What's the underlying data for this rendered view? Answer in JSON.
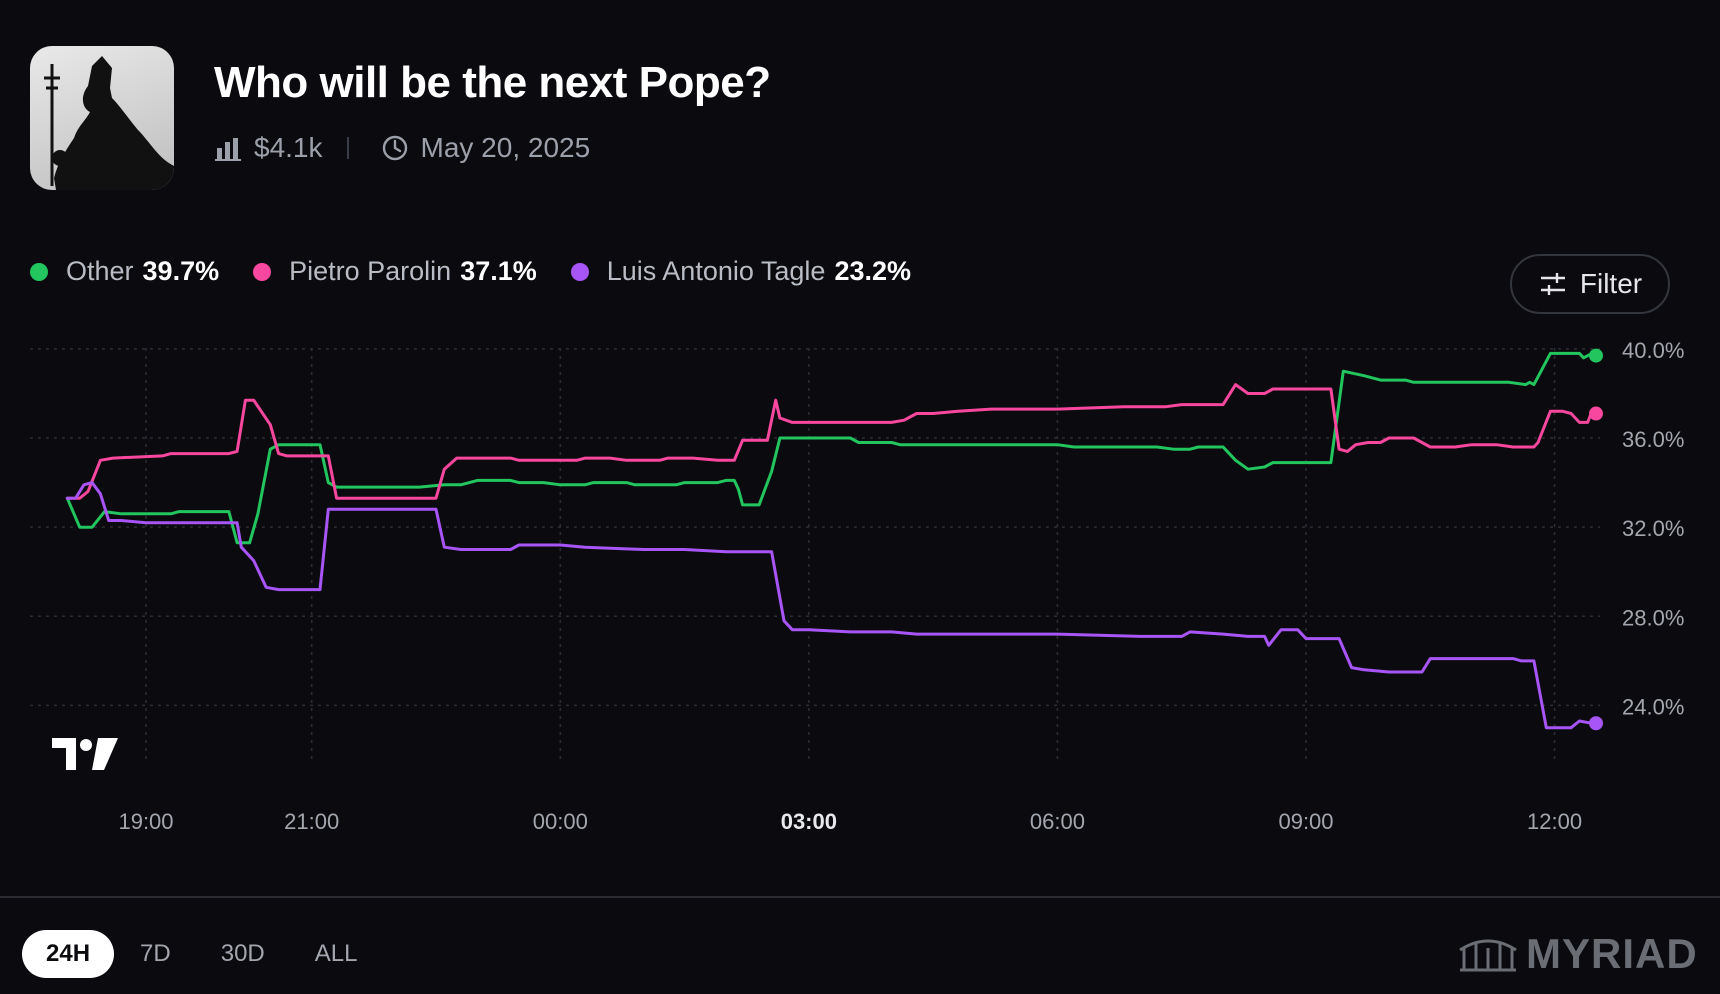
{
  "market": {
    "title": "Who will be the next Pope?",
    "volume": "$4.1k",
    "end_date": "May 20, 2025",
    "image_icon": "pope-silhouette-icon"
  },
  "legend": [
    {
      "name": "Other",
      "value": "39.7%",
      "color": "#22c55e"
    },
    {
      "name": "Pietro Parolin",
      "value": "37.1%",
      "color": "#f7479e"
    },
    {
      "name": "Luis Antonio Tagle",
      "value": "23.2%",
      "color": "#a855f7"
    }
  ],
  "filter_label": "Filter",
  "range_tabs": [
    {
      "label": "24H",
      "active": true
    },
    {
      "label": "7D",
      "active": false
    },
    {
      "label": "30D",
      "active": false
    },
    {
      "label": "ALL",
      "active": false
    }
  ],
  "brand": "MYRIAD",
  "chart_data": {
    "type": "line",
    "title": "",
    "xlabel": "",
    "ylabel": "",
    "ylim": [
      22.0,
      40.4
    ],
    "x_range_hours": [
      17.6,
      36.5
    ],
    "x_ticks": [
      {
        "h": 19,
        "label": "19:00",
        "bold": false
      },
      {
        "h": 21,
        "label": "21:00",
        "bold": false
      },
      {
        "h": 24,
        "label": "00:00",
        "bold": false
      },
      {
        "h": 27,
        "label": "03:00",
        "bold": true
      },
      {
        "h": 30,
        "label": "06:00",
        "bold": false
      },
      {
        "h": 33,
        "label": "09:00",
        "bold": false
      },
      {
        "h": 36,
        "label": "12:00",
        "bold": false
      }
    ],
    "y_ticks": [
      {
        "v": 24,
        "label": "24.0%"
      },
      {
        "v": 28,
        "label": "28.0%"
      },
      {
        "v": 32,
        "label": "32.0%"
      },
      {
        "v": 36,
        "label": "36.0%"
      },
      {
        "v": 40,
        "label": "40.0%"
      }
    ],
    "grid": true,
    "series": [
      {
        "name": "Other",
        "color": "#22c55e",
        "points": [
          [
            18.05,
            33.3
          ],
          [
            18.2,
            32.0
          ],
          [
            18.35,
            32.0
          ],
          [
            18.5,
            32.7
          ],
          [
            18.7,
            32.6
          ],
          [
            19.3,
            32.6
          ],
          [
            19.4,
            32.7
          ],
          [
            20.0,
            32.7
          ],
          [
            20.1,
            31.3
          ],
          [
            20.25,
            31.3
          ],
          [
            20.35,
            32.6
          ],
          [
            20.5,
            35.5
          ],
          [
            20.6,
            35.7
          ],
          [
            20.95,
            35.7
          ],
          [
            21.1,
            35.7
          ],
          [
            21.2,
            34.0
          ],
          [
            21.3,
            33.8
          ],
          [
            22.3,
            33.8
          ],
          [
            22.6,
            33.9
          ],
          [
            22.8,
            33.9
          ],
          [
            23.0,
            34.1
          ],
          [
            23.4,
            34.1
          ],
          [
            23.5,
            34.0
          ],
          [
            23.8,
            34.0
          ],
          [
            24.0,
            33.9
          ],
          [
            24.3,
            33.9
          ],
          [
            24.4,
            34.0
          ],
          [
            24.8,
            34.0
          ],
          [
            24.9,
            33.9
          ],
          [
            25.4,
            33.9
          ],
          [
            25.5,
            34.0
          ],
          [
            25.9,
            34.0
          ],
          [
            26.0,
            34.1
          ],
          [
            26.1,
            34.1
          ],
          [
            26.15,
            33.7
          ],
          [
            26.2,
            33.0
          ],
          [
            26.4,
            33.0
          ],
          [
            26.55,
            34.5
          ],
          [
            26.65,
            36.0
          ],
          [
            27.3,
            36.0
          ],
          [
            27.5,
            36.0
          ],
          [
            27.6,
            35.8
          ],
          [
            28.0,
            35.8
          ],
          [
            28.1,
            35.7
          ],
          [
            28.7,
            35.7
          ],
          [
            29.0,
            35.7
          ],
          [
            29.5,
            35.7
          ],
          [
            30.0,
            35.7
          ],
          [
            30.2,
            35.6
          ],
          [
            31.2,
            35.6
          ],
          [
            31.4,
            35.5
          ],
          [
            31.6,
            35.5
          ],
          [
            31.7,
            35.6
          ],
          [
            31.95,
            35.6
          ],
          [
            32.0,
            35.6
          ],
          [
            32.15,
            35.0
          ],
          [
            32.3,
            34.6
          ],
          [
            32.5,
            34.7
          ],
          [
            32.6,
            34.9
          ],
          [
            32.9,
            34.9
          ],
          [
            33.1,
            34.9
          ],
          [
            33.3,
            34.9
          ],
          [
            33.45,
            39.0
          ],
          [
            33.7,
            38.8
          ],
          [
            33.9,
            38.6
          ],
          [
            34.2,
            38.6
          ],
          [
            34.3,
            38.5
          ],
          [
            35.0,
            38.5
          ],
          [
            35.3,
            38.5
          ],
          [
            35.45,
            38.5
          ],
          [
            35.65,
            38.4
          ],
          [
            35.7,
            38.5
          ],
          [
            35.75,
            38.4
          ],
          [
            35.95,
            39.8
          ],
          [
            36.3,
            39.8
          ],
          [
            36.35,
            39.6
          ],
          [
            36.45,
            39.8
          ],
          [
            36.5,
            39.7
          ]
        ]
      },
      {
        "name": "Pietro Parolin",
        "color": "#f7479e",
        "points": [
          [
            18.05,
            33.3
          ],
          [
            18.2,
            33.3
          ],
          [
            18.3,
            33.6
          ],
          [
            18.45,
            35.0
          ],
          [
            18.6,
            35.1
          ],
          [
            19.2,
            35.2
          ],
          [
            19.3,
            35.3
          ],
          [
            20.0,
            35.3
          ],
          [
            20.1,
            35.4
          ],
          [
            20.2,
            37.7
          ],
          [
            20.3,
            37.7
          ],
          [
            20.5,
            36.6
          ],
          [
            20.6,
            35.3
          ],
          [
            20.7,
            35.2
          ],
          [
            21.1,
            35.2
          ],
          [
            21.2,
            35.2
          ],
          [
            21.3,
            33.3
          ],
          [
            21.5,
            33.3
          ],
          [
            22.0,
            33.3
          ],
          [
            22.5,
            33.3
          ],
          [
            22.6,
            34.6
          ],
          [
            22.75,
            35.1
          ],
          [
            23.0,
            35.1
          ],
          [
            23.4,
            35.1
          ],
          [
            23.5,
            35.0
          ],
          [
            24.0,
            35.0
          ],
          [
            24.2,
            35.0
          ],
          [
            24.3,
            35.1
          ],
          [
            24.6,
            35.1
          ],
          [
            24.8,
            35.0
          ],
          [
            25.2,
            35.0
          ],
          [
            25.3,
            35.1
          ],
          [
            25.6,
            35.1
          ],
          [
            25.9,
            35.0
          ],
          [
            26.0,
            35.0
          ],
          [
            26.1,
            35.0
          ],
          [
            26.2,
            35.9
          ],
          [
            26.4,
            35.9
          ],
          [
            26.5,
            35.9
          ],
          [
            26.6,
            37.7
          ],
          [
            26.65,
            36.9
          ],
          [
            26.8,
            36.7
          ],
          [
            27.0,
            36.7
          ],
          [
            28.0,
            36.7
          ],
          [
            28.15,
            36.8
          ],
          [
            28.3,
            37.1
          ],
          [
            28.5,
            37.1
          ],
          [
            28.8,
            37.2
          ],
          [
            29.2,
            37.3
          ],
          [
            30.0,
            37.3
          ],
          [
            30.8,
            37.4
          ],
          [
            31.3,
            37.4
          ],
          [
            31.5,
            37.5
          ],
          [
            32.0,
            37.5
          ],
          [
            32.15,
            38.4
          ],
          [
            32.3,
            38.0
          ],
          [
            32.5,
            38.0
          ],
          [
            32.6,
            38.2
          ],
          [
            33.0,
            38.2
          ],
          [
            33.25,
            38.2
          ],
          [
            33.3,
            38.2
          ],
          [
            33.4,
            35.5
          ],
          [
            33.5,
            35.4
          ],
          [
            33.6,
            35.7
          ],
          [
            33.75,
            35.8
          ],
          [
            33.9,
            35.8
          ],
          [
            34.0,
            36.0
          ],
          [
            34.2,
            36.0
          ],
          [
            34.3,
            36.0
          ],
          [
            34.5,
            35.6
          ],
          [
            34.8,
            35.6
          ],
          [
            35.0,
            35.7
          ],
          [
            35.3,
            35.7
          ],
          [
            35.5,
            35.6
          ],
          [
            35.75,
            35.6
          ],
          [
            35.8,
            35.8
          ],
          [
            35.95,
            37.2
          ],
          [
            36.1,
            37.2
          ],
          [
            36.2,
            37.1
          ],
          [
            36.3,
            36.7
          ],
          [
            36.4,
            36.7
          ],
          [
            36.45,
            37.2
          ],
          [
            36.5,
            37.1
          ]
        ]
      },
      {
        "name": "Luis Antonio Tagle",
        "color": "#a855f7",
        "points": [
          [
            18.05,
            33.3
          ],
          [
            18.15,
            33.3
          ],
          [
            18.25,
            33.9
          ],
          [
            18.35,
            34.0
          ],
          [
            18.45,
            33.5
          ],
          [
            18.55,
            32.3
          ],
          [
            18.7,
            32.3
          ],
          [
            19.0,
            32.2
          ],
          [
            19.6,
            32.2
          ],
          [
            20.1,
            32.2
          ],
          [
            20.15,
            31.1
          ],
          [
            20.3,
            30.5
          ],
          [
            20.45,
            29.3
          ],
          [
            20.6,
            29.2
          ],
          [
            21.1,
            29.2
          ],
          [
            21.2,
            32.8
          ],
          [
            21.5,
            32.8
          ],
          [
            22.5,
            32.8
          ],
          [
            22.6,
            31.1
          ],
          [
            22.8,
            31.0
          ],
          [
            23.2,
            31.0
          ],
          [
            23.4,
            31.0
          ],
          [
            23.5,
            31.2
          ],
          [
            24.0,
            31.2
          ],
          [
            24.3,
            31.1
          ],
          [
            25.0,
            31.0
          ],
          [
            25.5,
            31.0
          ],
          [
            26.0,
            30.9
          ],
          [
            26.3,
            30.9
          ],
          [
            26.55,
            30.9
          ],
          [
            26.7,
            27.8
          ],
          [
            26.8,
            27.4
          ],
          [
            27.0,
            27.4
          ],
          [
            27.5,
            27.3
          ],
          [
            28.0,
            27.3
          ],
          [
            28.3,
            27.2
          ],
          [
            29.0,
            27.2
          ],
          [
            30.0,
            27.2
          ],
          [
            31.0,
            27.1
          ],
          [
            31.5,
            27.1
          ],
          [
            31.6,
            27.3
          ],
          [
            32.0,
            27.2
          ],
          [
            32.3,
            27.1
          ],
          [
            32.5,
            27.1
          ],
          [
            32.55,
            26.7
          ],
          [
            32.7,
            27.4
          ],
          [
            32.9,
            27.4
          ],
          [
            33.0,
            27.0
          ],
          [
            33.3,
            27.0
          ],
          [
            33.4,
            27.0
          ],
          [
            33.55,
            25.7
          ],
          [
            33.7,
            25.6
          ],
          [
            34.0,
            25.5
          ],
          [
            34.3,
            25.5
          ],
          [
            34.4,
            25.5
          ],
          [
            34.5,
            26.1
          ],
          [
            35.0,
            26.1
          ],
          [
            35.5,
            26.1
          ],
          [
            35.6,
            26.0
          ],
          [
            35.75,
            26.0
          ],
          [
            35.9,
            23.0
          ],
          [
            36.0,
            23.0
          ],
          [
            36.2,
            23.0
          ],
          [
            36.3,
            23.3
          ],
          [
            36.45,
            23.2
          ],
          [
            36.5,
            23.2
          ]
        ]
      }
    ]
  }
}
